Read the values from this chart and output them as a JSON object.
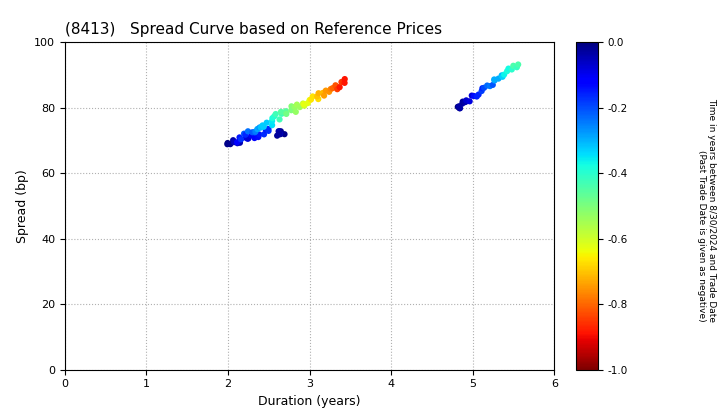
{
  "title": "(8413)   Spread Curve based on Reference Prices",
  "xlabel": "Duration (years)",
  "ylabel": "Spread (bp)",
  "xlim": [
    0,
    6
  ],
  "ylim": [
    0,
    100
  ],
  "xticks": [
    0,
    1,
    2,
    3,
    4,
    5,
    6
  ],
  "yticks": [
    0,
    20,
    40,
    60,
    80,
    100
  ],
  "colorbar_label": "Time in years between 8/30/2024 and Trade Date\n(Past Trade Date is given as negative)",
  "cmap": "jet_r",
  "vmin": -1.0,
  "vmax": 0.0,
  "background_color": "#ffffff",
  "grid_color": "#b0b0b0",
  "point_size": 20,
  "title_fontsize": 11,
  "axis_fontsize": 9,
  "colorbar_fontsize": 7.5
}
